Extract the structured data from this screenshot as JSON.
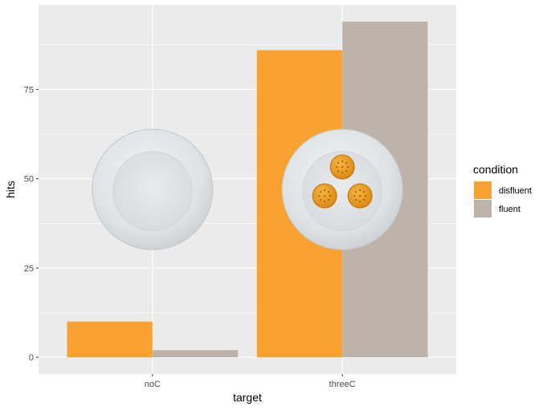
{
  "chart_data": {
    "type": "bar",
    "categories": [
      "noC",
      "threeC"
    ],
    "series": [
      {
        "name": "disfluent",
        "values": [
          10,
          86
        ],
        "color": "#F8A232"
      },
      {
        "name": "fluent",
        "values": [
          2,
          94
        ],
        "color": "#BDB3AA"
      }
    ],
    "xlabel": "target",
    "ylabel": "hits",
    "ylim": [
      -4.7,
      98.7
    ],
    "yticks": [
      0,
      25,
      50,
      75
    ],
    "grid": true,
    "legend": {
      "title": "condition",
      "position": "right"
    },
    "annotations": [
      {
        "category": "noC",
        "kind": "empty-plate-image",
        "crackers": 0
      },
      {
        "category": "threeC",
        "kind": "plate-with-crackers-image",
        "crackers": 3
      }
    ]
  }
}
